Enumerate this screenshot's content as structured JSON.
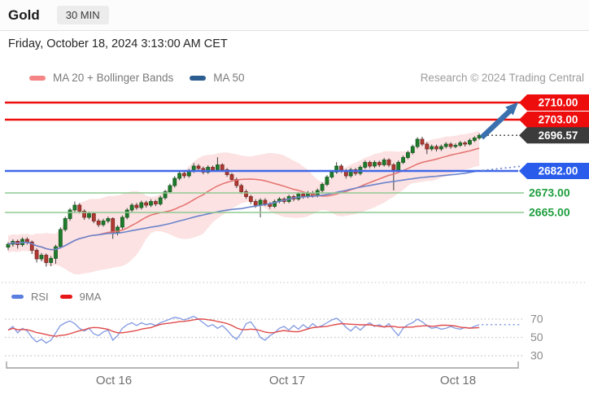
{
  "header": {
    "title": "Gold",
    "timeframe": "30 MIN"
  },
  "date_line": "Friday, October 18, 2024 3:13:00 AM CET",
  "credit": "Research © 2024 Trading Central",
  "legend_main": [
    {
      "label": "MA 20 + Bollinger Bands",
      "color": "#f58484"
    },
    {
      "label": "MA 50",
      "color": "#2c5d90"
    }
  ],
  "legend_rsi": [
    {
      "label": "RSI",
      "color": "#5b7fe0"
    },
    {
      "label": "9MA",
      "color": "#e81717"
    }
  ],
  "chart_data": [
    {
      "type": "candlestick",
      "title": "Gold 30 MIN",
      "x_axis": [
        "Oct 16",
        "Oct 17",
        "Oct 18"
      ],
      "y_range": [
        2640,
        2712
      ],
      "overlays": [
        "MA 20 + Bollinger Bands",
        "MA 50"
      ],
      "levels": {
        "resistance": [
          {
            "label": "2710.00",
            "value": 2710,
            "color": "#ee0d0d"
          },
          {
            "label": "2703.00",
            "value": 2703,
            "color": "#ee0d0d"
          }
        ],
        "last_price": {
          "label": "2696.57",
          "value": 2696.57,
          "color": "#3b3b3b"
        },
        "pivot": {
          "label": "2682.00",
          "value": 2682,
          "color": "#2a5cec",
          "line_color": "#4168e8"
        },
        "support": [
          {
            "label": "2673.00",
            "value": 2673,
            "color": "#1e9e3e",
            "line_color": "#8fca92"
          },
          {
            "label": "2665.00",
            "value": 2665,
            "color": "#1e9e3e",
            "line_color": "#8fca92"
          }
        ]
      },
      "candles_ohlc": [
        [
          2650.8,
          2652.8,
          2649.6,
          2652.0
        ],
        [
          2652.0,
          2654.0,
          2651.0,
          2653.2
        ],
        [
          2653.2,
          2653.9,
          2650.2,
          2651.8
        ],
        [
          2651.8,
          2654.8,
          2651.0,
          2654.0
        ],
        [
          2654.0,
          2654.8,
          2651.9,
          2652.9
        ],
        [
          2652.9,
          2653.5,
          2648.0,
          2649.5
        ],
        [
          2649.5,
          2650.3,
          2644.5,
          2646.0
        ],
        [
          2646.0,
          2648.4,
          2645.0,
          2647.5
        ],
        [
          2647.5,
          2648.2,
          2642.8,
          2644.5
        ],
        [
          2644.5,
          2647.2,
          2643.0,
          2646.2
        ],
        [
          2646.2,
          2651.8,
          2644.0,
          2651.0
        ],
        [
          2651.0,
          2658.9,
          2650.4,
          2658.0
        ],
        [
          2658.0,
          2663.3,
          2657.2,
          2662.5
        ],
        [
          2662.5,
          2666.8,
          2661.6,
          2666.0
        ],
        [
          2666.0,
          2669.5,
          2665.0,
          2668.0
        ],
        [
          2668.0,
          2668.8,
          2664.6,
          2665.5
        ],
        [
          2665.5,
          2666.3,
          2662.0,
          2663.0
        ],
        [
          2663.0,
          2665.4,
          2662.2,
          2664.5
        ],
        [
          2664.5,
          2665.2,
          2660.6,
          2661.5
        ],
        [
          2661.5,
          2662.4,
          2659.0,
          2660.0
        ],
        [
          2660.0,
          2662.4,
          2659.2,
          2661.5
        ],
        [
          2661.5,
          2663.3,
          2660.6,
          2662.5
        ],
        [
          2662.5,
          2663.0,
          2654.2,
          2656.5
        ],
        [
          2656.5,
          2659.8,
          2655.6,
          2659.0
        ],
        [
          2659.0,
          2663.8,
          2658.2,
          2663.0
        ],
        [
          2663.0,
          2666.8,
          2662.2,
          2666.0
        ],
        [
          2666.0,
          2668.8,
          2665.2,
          2668.0
        ],
        [
          2668.0,
          2668.9,
          2666.1,
          2667.0
        ],
        [
          2667.0,
          2669.8,
          2666.2,
          2669.0
        ],
        [
          2669.0,
          2669.8,
          2667.0,
          2668.0
        ],
        [
          2668.0,
          2670.4,
          2667.2,
          2669.5
        ],
        [
          2669.5,
          2670.2,
          2667.6,
          2668.5
        ],
        [
          2668.5,
          2671.8,
          2667.8,
          2671.0
        ],
        [
          2671.0,
          2674.3,
          2670.2,
          2673.5
        ],
        [
          2673.5,
          2676.8,
          2672.8,
          2676.0
        ],
        [
          2676.0,
          2679.9,
          2675.2,
          2679.0
        ],
        [
          2679.0,
          2681.9,
          2678.2,
          2681.0
        ],
        [
          2681.0,
          2681.8,
          2679.0,
          2680.0
        ],
        [
          2680.0,
          2682.8,
          2679.2,
          2682.0
        ],
        [
          2682.0,
          2685.2,
          2681.2,
          2684.0
        ],
        [
          2684.0,
          2684.8,
          2682.0,
          2683.0
        ],
        [
          2683.0,
          2683.8,
          2680.6,
          2681.5
        ],
        [
          2681.5,
          2684.3,
          2680.8,
          2683.5
        ],
        [
          2683.5,
          2684.2,
          2681.6,
          2682.5
        ],
        [
          2682.5,
          2687.6,
          2681.8,
          2684.5
        ],
        [
          2684.5,
          2685.2,
          2681.6,
          2682.5
        ],
        [
          2682.5,
          2683.2,
          2679.6,
          2680.5
        ],
        [
          2680.5,
          2681.2,
          2677.6,
          2678.5
        ],
        [
          2678.5,
          2679.3,
          2675.0,
          2676.0
        ],
        [
          2676.0,
          2676.8,
          2672.6,
          2673.5
        ],
        [
          2673.5,
          2674.4,
          2670.6,
          2671.5
        ],
        [
          2671.5,
          2672.2,
          2668.5,
          2669.5
        ],
        [
          2669.5,
          2670.4,
          2666.9,
          2668.0
        ],
        [
          2668.0,
          2670.8,
          2663.0,
          2670.0
        ],
        [
          2670.0,
          2670.8,
          2667.6,
          2668.5
        ],
        [
          2668.5,
          2669.2,
          2666.5,
          2667.5
        ],
        [
          2667.5,
          2670.3,
          2666.8,
          2669.5
        ],
        [
          2669.5,
          2671.3,
          2668.8,
          2670.5
        ],
        [
          2670.5,
          2671.2,
          2668.6,
          2669.5
        ],
        [
          2669.5,
          2672.3,
          2668.8,
          2671.5
        ],
        [
          2671.5,
          2672.2,
          2669.6,
          2670.5
        ],
        [
          2670.5,
          2673.3,
          2669.8,
          2672.5
        ],
        [
          2672.5,
          2673.2,
          2670.6,
          2671.5
        ],
        [
          2671.5,
          2673.8,
          2670.8,
          2673.0
        ],
        [
          2673.0,
          2673.8,
          2671.1,
          2672.0
        ],
        [
          2672.0,
          2674.8,
          2671.2,
          2674.0
        ],
        [
          2674.0,
          2677.3,
          2673.2,
          2676.5
        ],
        [
          2676.5,
          2680.3,
          2675.8,
          2679.5
        ],
        [
          2679.5,
          2682.3,
          2678.8,
          2681.5
        ],
        [
          2681.5,
          2685.6,
          2680.8,
          2684.0
        ],
        [
          2684.0,
          2684.8,
          2681.2,
          2682.0
        ],
        [
          2682.0,
          2682.8,
          2678.9,
          2680.0
        ],
        [
          2680.0,
          2683.3,
          2679.2,
          2682.5
        ],
        [
          2682.5,
          2683.2,
          2680.1,
          2681.0
        ],
        [
          2681.0,
          2684.3,
          2680.2,
          2683.5
        ],
        [
          2683.5,
          2686.3,
          2682.8,
          2685.5
        ],
        [
          2685.5,
          2686.2,
          2683.1,
          2684.0
        ],
        [
          2684.0,
          2686.3,
          2683.2,
          2685.5
        ],
        [
          2685.5,
          2686.2,
          2683.6,
          2684.5
        ],
        [
          2684.5,
          2687.3,
          2683.8,
          2686.5
        ],
        [
          2686.5,
          2687.2,
          2683.6,
          2684.5
        ],
        [
          2684.5,
          2685.2,
          2674.0,
          2682.5
        ],
        [
          2682.5,
          2686.3,
          2681.8,
          2685.5
        ],
        [
          2685.5,
          2688.3,
          2684.8,
          2687.5
        ],
        [
          2687.5,
          2690.3,
          2686.8,
          2689.5
        ],
        [
          2689.5,
          2692.8,
          2688.8,
          2692.0
        ],
        [
          2692.0,
          2695.8,
          2691.2,
          2695.0
        ],
        [
          2695.0,
          2696.0,
          2692.2,
          2693.0
        ],
        [
          2693.0,
          2693.8,
          2688.9,
          2691.0
        ],
        [
          2691.0,
          2692.8,
          2690.2,
          2692.0
        ],
        [
          2692.0,
          2692.8,
          2690.0,
          2691.0
        ],
        [
          2691.0,
          2692.8,
          2690.2,
          2692.0
        ],
        [
          2692.0,
          2693.8,
          2691.2,
          2693.0
        ],
        [
          2693.0,
          2693.7,
          2691.1,
          2692.0
        ],
        [
          2692.0,
          2693.3,
          2691.3,
          2692.5
        ],
        [
          2692.5,
          2694.3,
          2691.8,
          2693.5
        ],
        [
          2693.5,
          2694.2,
          2692.0,
          2693.0
        ],
        [
          2693.0,
          2695.3,
          2692.4,
          2694.5
        ],
        [
          2694.5,
          2696.2,
          2693.8,
          2695.5
        ],
        [
          2695.5,
          2697.4,
          2694.8,
          2696.57
        ]
      ]
    },
    {
      "type": "line",
      "title": "RSI with 9MA",
      "y_ticks": [
        70,
        50,
        30
      ],
      "y_tick_labels": [
        "70",
        "50",
        "30"
      ],
      "series": [
        {
          "name": "RSI",
          "color": "#8099e2",
          "values": [
            58,
            62,
            55,
            60,
            57,
            50,
            45,
            48,
            44,
            47,
            55,
            63,
            66,
            68,
            65,
            60,
            57,
            60,
            54,
            52,
            56,
            58,
            47,
            52,
            60,
            64,
            66,
            63,
            66,
            64,
            65,
            63,
            66,
            68,
            70,
            72,
            71,
            69,
            71,
            73,
            70,
            66,
            62,
            64,
            60,
            63,
            58,
            52,
            48,
            55,
            65,
            67,
            60,
            50,
            47,
            52,
            55,
            60,
            62,
            58,
            63,
            59,
            64,
            60,
            65,
            61,
            63,
            66,
            69,
            71,
            67,
            61,
            57,
            62,
            58,
            63,
            66,
            62,
            64,
            61,
            65,
            58,
            52,
            60,
            64,
            66,
            70,
            67,
            63,
            60,
            61,
            59,
            60,
            62,
            60,
            59,
            61,
            60,
            62,
            64
          ]
        },
        {
          "name": "9MA",
          "color": "#e14b4b",
          "derived": "9-period moving average of RSI"
        }
      ]
    }
  ]
}
